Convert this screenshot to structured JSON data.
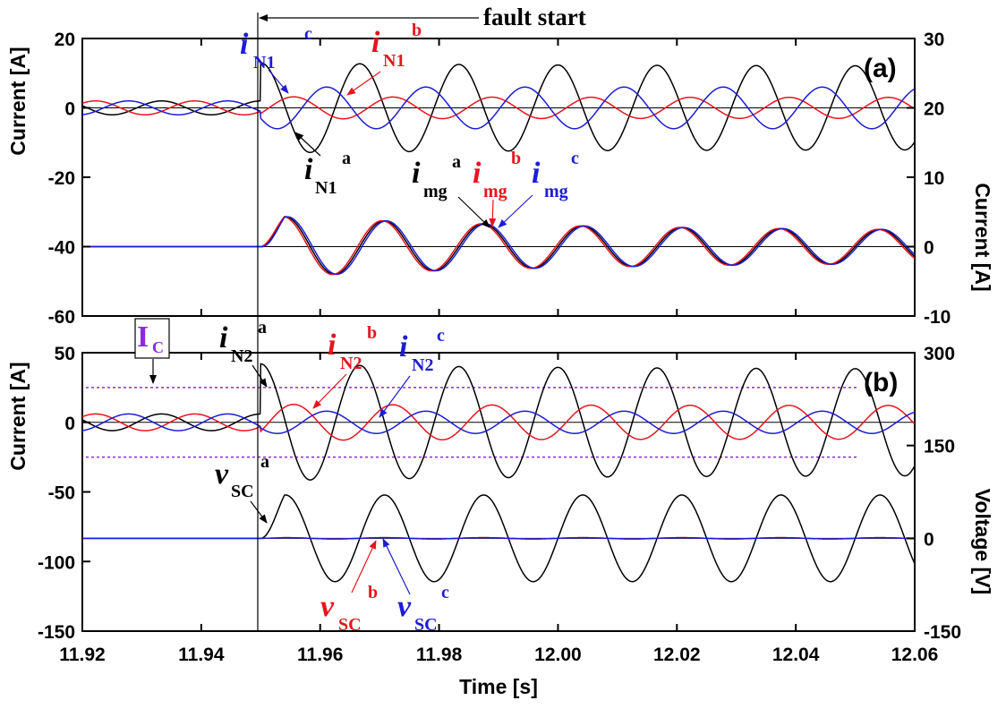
{
  "chart_data": {
    "type": "line",
    "colors": {
      "a": "#000000",
      "b": "#e8141e",
      "c": "#1c1cd6",
      "ic": "#8a2be2",
      "axis": "#000000"
    },
    "x_axis": {
      "label": "Time [s]",
      "range": [
        11.92,
        12.06
      ],
      "ticks": [
        "11.92",
        "11.94",
        "11.96",
        "11.98",
        "12.00",
        "12.02",
        "12.04",
        "12.06"
      ]
    },
    "fault_start": {
      "label": "fault start",
      "time": 11.95
    },
    "panels": [
      {
        "id": "a",
        "label": "(a)",
        "left_axis": {
          "label": "Current [A]",
          "range": [
            -60,
            20
          ],
          "ticks": [
            "20",
            "0",
            "-20",
            "-40",
            "-60"
          ]
        },
        "right_axis": {
          "label": "Current [A]",
          "range": [
            -10,
            30
          ],
          "ticks": [
            "30",
            "20",
            "10",
            "0",
            "-10"
          ]
        },
        "series": [
          {
            "phase": "a",
            "axis": "left",
            "offset": 0,
            "pre_amplitude": 2,
            "post_amplitude": 13,
            "decay_to": 12,
            "phase_deg": 90
          },
          {
            "phase": "b",
            "axis": "left",
            "offset": 0,
            "pre_amplitude": 2,
            "post_amplitude": 3.2,
            "decay_to": 3,
            "phase_deg": -30
          },
          {
            "phase": "c",
            "axis": "left",
            "offset": 0,
            "pre_amplitude": 2,
            "post_amplitude": 6,
            "decay_to": 6,
            "phase_deg": 210
          },
          {
            "phase": "a",
            "axis": "right",
            "offset": 0,
            "pre_amplitude": 0,
            "post_amplitude": 4.5,
            "decay_to": 2.2,
            "phase_deg": 0
          },
          {
            "phase": "b",
            "axis": "right",
            "offset": 0,
            "pre_amplitude": 0,
            "post_amplitude": 4.5,
            "decay_to": 2.2,
            "phase_deg": 8
          },
          {
            "phase": "c",
            "axis": "right",
            "offset": 0,
            "pre_amplitude": 0,
            "post_amplitude": 4.5,
            "decay_to": 2.2,
            "phase_deg": -8
          }
        ],
        "zero_lines": [
          {
            "axis": "left",
            "value": 0
          },
          {
            "axis": "right",
            "value": 0
          }
        ],
        "annotations": {
          "iN1c": {
            "main": "i",
            "sub": "N1",
            "sup": "c"
          },
          "iN1b": {
            "main": "i",
            "sub": "N1",
            "sup": "b"
          },
          "iN1a": {
            "main": "i",
            "sub": "N1",
            "sup": "a"
          },
          "imga": {
            "main": "i",
            "sub": "mg",
            "sup": "a"
          },
          "imgb": {
            "main": "i",
            "sub": "mg",
            "sup": "b"
          },
          "imgc": {
            "main": "i",
            "sub": "mg",
            "sup": "c"
          }
        }
      },
      {
        "id": "b",
        "label": "(b)",
        "left_axis": {
          "label": "Current [A]",
          "range": [
            -150,
            50
          ],
          "ticks": [
            "50",
            "0",
            "-50",
            "-100",
            "-150"
          ]
        },
        "right_axis": {
          "label": "Voltage [V]",
          "range": [
            -150,
            300
          ],
          "ticks": [
            "300",
            "150",
            "0",
            "-150"
          ]
        },
        "series": [
          {
            "phase": "a",
            "axis": "left",
            "offset": 0,
            "pre_amplitude": 6,
            "post_amplitude": 42,
            "decay_to": 38,
            "phase_deg": 90
          },
          {
            "phase": "b",
            "axis": "left",
            "offset": 0,
            "pre_amplitude": 6,
            "post_amplitude": 13,
            "decay_to": 12,
            "phase_deg": -30
          },
          {
            "phase": "c",
            "axis": "left",
            "offset": 0,
            "pre_amplitude": 6,
            "post_amplitude": 8,
            "decay_to": 8,
            "phase_deg": 210
          },
          {
            "phase": "a",
            "axis": "right",
            "offset": 0,
            "pre_amplitude": 0,
            "post_amplitude": 70,
            "decay_to": 70,
            "phase_deg": 0
          },
          {
            "phase": "b",
            "axis": "right",
            "offset": 0,
            "pre_amplitude": 0,
            "post_amplitude": 1,
            "decay_to": 1,
            "phase_deg": 0
          },
          {
            "phase": "c",
            "axis": "right",
            "offset": 0,
            "pre_amplitude": 0,
            "post_amplitude": 1,
            "decay_to": 1,
            "phase_deg": 0
          }
        ],
        "limit_lines": [
          {
            "axis": "left",
            "value": 25
          },
          {
            "axis": "left",
            "value": -25
          }
        ],
        "zero_lines": [
          {
            "axis": "left",
            "value": 0
          },
          {
            "axis": "right",
            "value": 0
          }
        ],
        "limit_label": {
          "main": "I",
          "sub": "C"
        },
        "annotations": {
          "iN2a": {
            "main": "i",
            "sub": "N2",
            "sup": "a"
          },
          "iN2b": {
            "main": "i",
            "sub": "N2",
            "sup": "b"
          },
          "iN2c": {
            "main": "i",
            "sub": "N2",
            "sup": "c"
          },
          "vSCa": {
            "main": "v",
            "sub": "SC",
            "sup": "a"
          },
          "vSCb": {
            "main": "v",
            "sub": "SC",
            "sup": "b"
          },
          "vSCc": {
            "main": "v",
            "sub": "SC",
            "sup": "c"
          }
        }
      }
    ],
    "frequency_hz": 60
  }
}
